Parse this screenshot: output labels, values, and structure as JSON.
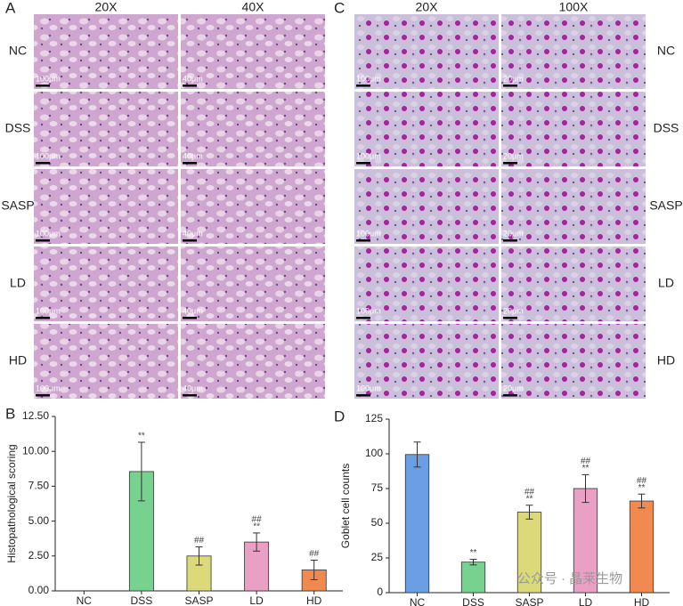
{
  "micrographs": [
    {
      "panel": "A",
      "columns": [
        "20X",
        "40X"
      ],
      "rows": [
        "NC",
        "DSS",
        "SASP",
        "LD",
        "HD"
      ],
      "scale_bars": [
        "100μm",
        "40μm"
      ]
    },
    {
      "panel": "C",
      "columns": [
        "20X",
        "100X"
      ],
      "rows": [
        "NC",
        "DSS",
        "SASP",
        "LD",
        "HD"
      ],
      "scale_bars": [
        "100μm",
        "20μm"
      ]
    }
  ],
  "chart_data": [
    {
      "type": "bar",
      "panel": "B",
      "y_label": "Histopathological scoring",
      "categories": [
        "NC",
        "DSS",
        "SASP",
        "LD",
        "HD"
      ],
      "values": [
        0,
        8.55,
        2.5,
        3.5,
        1.5
      ],
      "errors": [
        0,
        2.1,
        0.65,
        0.65,
        0.7
      ],
      "colors": [
        "#6b9fe5",
        "#77d18f",
        "#dcd97a",
        "#e9a0c4",
        "#f08a50"
      ],
      "annotations": [
        [],
        [
          "**"
        ],
        [
          "##"
        ],
        [
          "##",
          "**"
        ],
        [
          "##"
        ]
      ],
      "ylim": [
        0,
        12.5
      ],
      "yticks": [
        {
          "value": 0,
          "label": "0.00"
        },
        {
          "value": 2.5,
          "label": "2.50"
        },
        {
          "value": 5,
          "label": "5.00"
        },
        {
          "value": 7.5,
          "label": "7.50"
        },
        {
          "value": 10,
          "label": "10.00"
        },
        {
          "value": 12.5,
          "label": "12.50"
        }
      ]
    },
    {
      "type": "bar",
      "panel": "D",
      "y_label": "Goblet cell counts",
      "categories": [
        "NC",
        "DSS",
        "SASP",
        "LD",
        "HD"
      ],
      "values": [
        99.5,
        22,
        58,
        75,
        66
      ],
      "errors": [
        9,
        2,
        5,
        10,
        5
      ],
      "colors": [
        "#6b9fe5",
        "#77d18f",
        "#dcd97a",
        "#e9a0c4",
        "#f08a50"
      ],
      "annotations": [
        [],
        [
          "**"
        ],
        [
          "##",
          "**"
        ],
        [
          "##",
          "**"
        ],
        [
          "##",
          "**"
        ]
      ],
      "ylim": [
        0,
        125
      ],
      "yticks": [
        0,
        25,
        50,
        75,
        100,
        125
      ]
    }
  ],
  "watermark": "公众号 · 晶莱生物"
}
